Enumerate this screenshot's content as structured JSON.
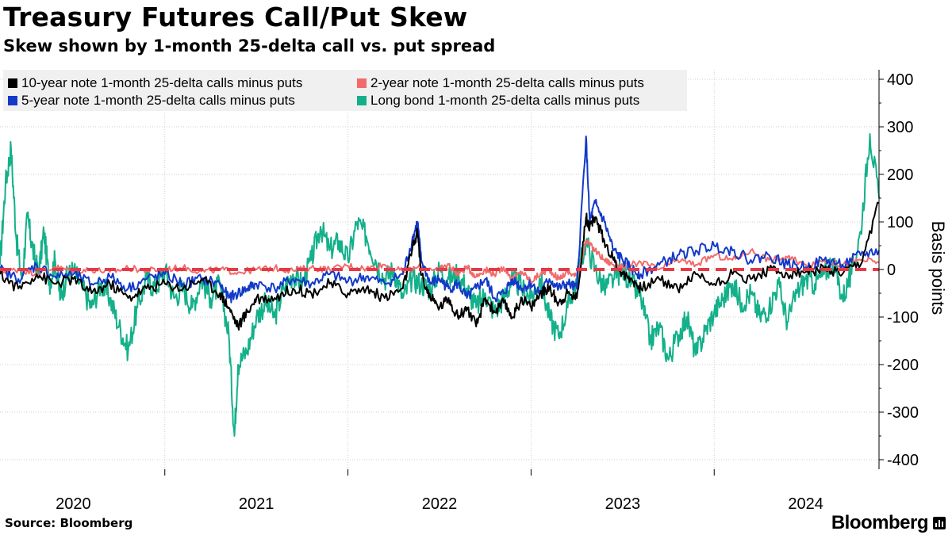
{
  "header": {
    "title": "Treasury Futures Call/Put Skew",
    "subtitle": "Skew shown by 1-month 25-delta call vs. put spread"
  },
  "footer": {
    "source": "Source: Bloomberg",
    "brand": "Bloomberg"
  },
  "chart_data": {
    "type": "line",
    "title": "Treasury Futures Call/Put Skew",
    "subtitle": "Skew shown by 1-month 25-delta call vs. put spread",
    "xlabel": "",
    "ylabel": "Basis points",
    "ylim": [
      -420,
      420
    ],
    "xlim": [
      2019.6,
      2024.4
    ],
    "y_ticks": [
      400,
      300,
      200,
      100,
      0,
      -100,
      -200,
      -300,
      -400
    ],
    "x_ticks": [
      {
        "label": "2020",
        "t": 2020.0
      },
      {
        "label": "2021",
        "t": 2021.0
      },
      {
        "label": "2022",
        "t": 2022.0
      },
      {
        "label": "2023",
        "t": 2023.0
      },
      {
        "label": "2024",
        "t": 2024.0
      }
    ],
    "grid": true,
    "legend_position": "top-left",
    "reference_line": {
      "y": 0,
      "style": "dashed",
      "color": "#e63946"
    },
    "series": [
      {
        "name": "Long bond 1-month 25-delta calls minus puts",
        "color": "#14b08a",
        "points": [
          [
            2019.6,
            10
          ],
          [
            2019.63,
            180
          ],
          [
            2019.66,
            255
          ],
          [
            2019.69,
            60
          ],
          [
            2019.72,
            -20
          ],
          [
            2019.75,
            110
          ],
          [
            2019.78,
            40
          ],
          [
            2019.81,
            -10
          ],
          [
            2019.84,
            80
          ],
          [
            2019.87,
            -30
          ],
          [
            2019.9,
            20
          ],
          [
            2019.93,
            -60
          ],
          [
            2019.96,
            -20
          ],
          [
            2020.0,
            0
          ],
          [
            2020.05,
            -40
          ],
          [
            2020.1,
            -80
          ],
          [
            2020.15,
            -30
          ],
          [
            2020.2,
            -60
          ],
          [
            2020.25,
            -120
          ],
          [
            2020.3,
            -170
          ],
          [
            2020.35,
            -80
          ],
          [
            2020.4,
            -20
          ],
          [
            2020.45,
            -40
          ],
          [
            2020.5,
            0
          ],
          [
            2020.55,
            -60
          ],
          [
            2020.6,
            -40
          ],
          [
            2020.65,
            -80
          ],
          [
            2020.7,
            -20
          ],
          [
            2020.75,
            -60
          ],
          [
            2020.8,
            -30
          ],
          [
            2020.85,
            -140
          ],
          [
            2020.88,
            -350
          ],
          [
            2020.9,
            -200
          ],
          [
            2020.95,
            -170
          ],
          [
            2021.0,
            -100
          ],
          [
            2021.05,
            -70
          ],
          [
            2021.1,
            -100
          ],
          [
            2021.15,
            -40
          ],
          [
            2021.2,
            -10
          ],
          [
            2021.25,
            -30
          ],
          [
            2021.3,
            20
          ],
          [
            2021.35,
            90
          ],
          [
            2021.4,
            40
          ],
          [
            2021.45,
            60
          ],
          [
            2021.5,
            20
          ],
          [
            2021.55,
            100
          ],
          [
            2021.6,
            70
          ],
          [
            2021.65,
            20
          ],
          [
            2021.7,
            -20
          ],
          [
            2021.75,
            0
          ],
          [
            2021.8,
            -60
          ],
          [
            2021.85,
            -20
          ],
          [
            2021.9,
            -30
          ],
          [
            2021.95,
            -40
          ],
          [
            2022.0,
            0
          ],
          [
            2022.05,
            -20
          ],
          [
            2022.1,
            -10
          ],
          [
            2022.15,
            -40
          ],
          [
            2022.2,
            -80
          ],
          [
            2022.25,
            -50
          ],
          [
            2022.3,
            -90
          ],
          [
            2022.35,
            -60
          ],
          [
            2022.4,
            -20
          ],
          [
            2022.45,
            -40
          ],
          [
            2022.5,
            -60
          ],
          [
            2022.55,
            -20
          ],
          [
            2022.6,
            -100
          ],
          [
            2022.65,
            -140
          ],
          [
            2022.7,
            -80
          ],
          [
            2022.75,
            -20
          ],
          [
            2022.8,
            60
          ],
          [
            2022.85,
            0
          ],
          [
            2022.9,
            -40
          ],
          [
            2022.95,
            -20
          ],
          [
            2023.0,
            0
          ],
          [
            2023.05,
            -30
          ],
          [
            2023.1,
            -60
          ],
          [
            2023.15,
            -150
          ],
          [
            2023.2,
            -120
          ],
          [
            2023.25,
            -190
          ],
          [
            2023.3,
            -140
          ],
          [
            2023.35,
            -100
          ],
          [
            2023.4,
            -180
          ],
          [
            2023.45,
            -130
          ],
          [
            2023.5,
            -90
          ],
          [
            2023.55,
            -60
          ],
          [
            2023.6,
            -30
          ],
          [
            2023.65,
            -70
          ],
          [
            2023.7,
            -50
          ],
          [
            2023.75,
            -100
          ],
          [
            2023.8,
            -80
          ],
          [
            2023.85,
            -30
          ],
          [
            2023.9,
            -110
          ],
          [
            2023.95,
            -50
          ],
          [
            2024.0,
            -20
          ],
          [
            2024.05,
            -30
          ],
          [
            2024.1,
            -10
          ],
          [
            2024.15,
            20
          ],
          [
            2024.2,
            -60
          ],
          [
            2024.25,
            -10
          ],
          [
            2024.3,
            80
          ],
          [
            2024.35,
            285
          ],
          [
            2024.4,
            150
          ]
        ]
      },
      {
        "name": "2-year note 1-month 25-delta calls minus puts",
        "color": "#f26b6b",
        "points": [
          [
            2019.6,
            -5
          ],
          [
            2019.7,
            0
          ],
          [
            2019.8,
            -8
          ],
          [
            2019.9,
            5
          ],
          [
            2020.0,
            -3
          ],
          [
            2020.1,
            0
          ],
          [
            2020.2,
            -5
          ],
          [
            2020.3,
            3
          ],
          [
            2020.4,
            -2
          ],
          [
            2020.5,
            0
          ],
          [
            2020.6,
            4
          ],
          [
            2020.7,
            -4
          ],
          [
            2020.8,
            0
          ],
          [
            2020.9,
            -6
          ],
          [
            2021.0,
            0
          ],
          [
            2021.1,
            3
          ],
          [
            2021.2,
            -2
          ],
          [
            2021.3,
            4
          ],
          [
            2021.4,
            0
          ],
          [
            2021.5,
            8
          ],
          [
            2021.6,
            2
          ],
          [
            2021.7,
            10
          ],
          [
            2021.8,
            -5
          ],
          [
            2021.9,
            6
          ],
          [
            2022.0,
            0
          ],
          [
            2022.05,
            10
          ],
          [
            2022.1,
            -10
          ],
          [
            2022.15,
            5
          ],
          [
            2022.2,
            -15
          ],
          [
            2022.25,
            0
          ],
          [
            2022.3,
            -10
          ],
          [
            2022.35,
            5
          ],
          [
            2022.4,
            -20
          ],
          [
            2022.45,
            -5
          ],
          [
            2022.5,
            -25
          ],
          [
            2022.55,
            -10
          ],
          [
            2022.6,
            0
          ],
          [
            2022.65,
            -20
          ],
          [
            2022.7,
            -5
          ],
          [
            2022.75,
            -15
          ],
          [
            2022.8,
            60
          ],
          [
            2022.85,
            40
          ],
          [
            2022.9,
            20
          ],
          [
            2022.95,
            10
          ],
          [
            2023.0,
            5
          ],
          [
            2023.1,
            15
          ],
          [
            2023.2,
            0
          ],
          [
            2023.3,
            20
          ],
          [
            2023.4,
            10
          ],
          [
            2023.5,
            30
          ],
          [
            2023.6,
            20
          ],
          [
            2023.7,
            40
          ],
          [
            2023.8,
            20
          ],
          [
            2023.9,
            25
          ],
          [
            2024.0,
            10
          ],
          [
            2024.1,
            20
          ],
          [
            2024.2,
            10
          ],
          [
            2024.3,
            20
          ],
          [
            2024.4,
            15
          ]
        ]
      },
      {
        "name": "5-year note 1-month 25-delta calls minus puts",
        "color": "#1239c8",
        "points": [
          [
            2019.6,
            0
          ],
          [
            2019.7,
            -20
          ],
          [
            2019.8,
            10
          ],
          [
            2019.9,
            -15
          ],
          [
            2020.0,
            -10
          ],
          [
            2020.1,
            -30
          ],
          [
            2020.2,
            -15
          ],
          [
            2020.3,
            -40
          ],
          [
            2020.4,
            -20
          ],
          [
            2020.5,
            -10
          ],
          [
            2020.6,
            -30
          ],
          [
            2020.7,
            -20
          ],
          [
            2020.8,
            -30
          ],
          [
            2020.85,
            -60
          ],
          [
            2020.9,
            -50
          ],
          [
            2020.95,
            -40
          ],
          [
            2021.0,
            -30
          ],
          [
            2021.1,
            -40
          ],
          [
            2021.2,
            -20
          ],
          [
            2021.3,
            -30
          ],
          [
            2021.4,
            -10
          ],
          [
            2021.5,
            -25
          ],
          [
            2021.6,
            -15
          ],
          [
            2021.7,
            -30
          ],
          [
            2021.8,
            -10
          ],
          [
            2021.85,
            60
          ],
          [
            2021.88,
            100
          ],
          [
            2021.9,
            20
          ],
          [
            2021.95,
            -30
          ],
          [
            2022.0,
            -20
          ],
          [
            2022.05,
            -40
          ],
          [
            2022.1,
            -30
          ],
          [
            2022.15,
            -60
          ],
          [
            2022.2,
            -40
          ],
          [
            2022.25,
            -20
          ],
          [
            2022.3,
            -60
          ],
          [
            2022.35,
            -50
          ],
          [
            2022.4,
            -20
          ],
          [
            2022.45,
            -40
          ],
          [
            2022.5,
            -30
          ],
          [
            2022.55,
            -50
          ],
          [
            2022.6,
            -20
          ],
          [
            2022.65,
            -40
          ],
          [
            2022.7,
            -30
          ],
          [
            2022.75,
            -40
          ],
          [
            2022.8,
            280
          ],
          [
            2022.82,
            100
          ],
          [
            2022.85,
            140
          ],
          [
            2022.9,
            100
          ],
          [
            2022.95,
            40
          ],
          [
            2023.0,
            20
          ],
          [
            2023.05,
            0
          ],
          [
            2023.1,
            -10
          ],
          [
            2023.2,
            10
          ],
          [
            2023.3,
            30
          ],
          [
            2023.4,
            40
          ],
          [
            2023.5,
            50
          ],
          [
            2023.6,
            40
          ],
          [
            2023.7,
            20
          ],
          [
            2023.8,
            30
          ],
          [
            2023.9,
            10
          ],
          [
            2024.0,
            5
          ],
          [
            2024.1,
            20
          ],
          [
            2024.2,
            10
          ],
          [
            2024.3,
            30
          ],
          [
            2024.4,
            40
          ]
        ]
      },
      {
        "name": "10-year note 1-month 25-delta calls minus puts",
        "color": "#000000",
        "points": [
          [
            2019.6,
            -10
          ],
          [
            2019.7,
            -40
          ],
          [
            2019.8,
            -10
          ],
          [
            2019.9,
            -30
          ],
          [
            2020.0,
            -20
          ],
          [
            2020.1,
            -50
          ],
          [
            2020.2,
            -30
          ],
          [
            2020.3,
            -60
          ],
          [
            2020.4,
            -40
          ],
          [
            2020.5,
            -30
          ],
          [
            2020.6,
            -40
          ],
          [
            2020.7,
            -20
          ],
          [
            2020.8,
            -50
          ],
          [
            2020.85,
            -80
          ],
          [
            2020.9,
            -120
          ],
          [
            2020.95,
            -90
          ],
          [
            2021.0,
            -60
          ],
          [
            2021.1,
            -60
          ],
          [
            2021.2,
            -40
          ],
          [
            2021.3,
            -50
          ],
          [
            2021.4,
            -30
          ],
          [
            2021.5,
            -50
          ],
          [
            2021.6,
            -40
          ],
          [
            2021.7,
            -60
          ],
          [
            2021.8,
            -40
          ],
          [
            2021.85,
            40
          ],
          [
            2021.88,
            80
          ],
          [
            2021.9,
            -10
          ],
          [
            2021.95,
            -60
          ],
          [
            2022.0,
            -80
          ],
          [
            2022.05,
            -60
          ],
          [
            2022.1,
            -100
          ],
          [
            2022.15,
            -80
          ],
          [
            2022.2,
            -120
          ],
          [
            2022.25,
            -60
          ],
          [
            2022.3,
            -90
          ],
          [
            2022.35,
            -70
          ],
          [
            2022.4,
            -100
          ],
          [
            2022.45,
            -60
          ],
          [
            2022.5,
            -80
          ],
          [
            2022.55,
            -50
          ],
          [
            2022.6,
            -40
          ],
          [
            2022.65,
            -70
          ],
          [
            2022.7,
            -50
          ],
          [
            2022.75,
            -60
          ],
          [
            2022.8,
            110
          ],
          [
            2022.82,
            90
          ],
          [
            2022.85,
            110
          ],
          [
            2022.9,
            60
          ],
          [
            2022.95,
            20
          ],
          [
            2023.0,
            -10
          ],
          [
            2023.05,
            -20
          ],
          [
            2023.1,
            -40
          ],
          [
            2023.2,
            -20
          ],
          [
            2023.3,
            -40
          ],
          [
            2023.4,
            -10
          ],
          [
            2023.5,
            -30
          ],
          [
            2023.6,
            -10
          ],
          [
            2023.7,
            -20
          ],
          [
            2023.8,
            0
          ],
          [
            2023.9,
            -10
          ],
          [
            2024.0,
            -5
          ],
          [
            2024.1,
            0
          ],
          [
            2024.2,
            -10
          ],
          [
            2024.3,
            10
          ],
          [
            2024.4,
            140
          ]
        ]
      }
    ]
  }
}
